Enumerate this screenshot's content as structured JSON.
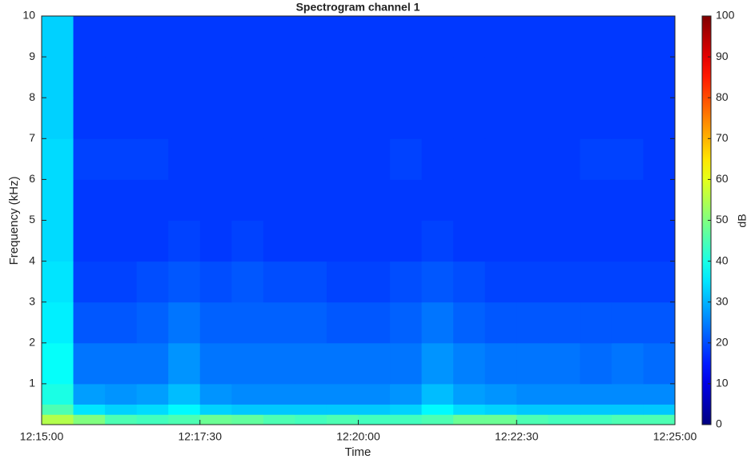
{
  "chart_data": {
    "type": "heatmap",
    "title": "Spectrogram channel 1",
    "xlabel": "Time",
    "ylabel": "Frequency (kHz)",
    "colorbar_label": "dB",
    "colormap": "jet",
    "x_edges": [
      44100,
      44130,
      44160,
      44190,
      44220,
      44250,
      44280,
      44310,
      44340,
      44370,
      44400,
      44430,
      44460,
      44490,
      44520,
      44550,
      44580,
      44610,
      44640,
      44670,
      44700
    ],
    "y_edges": [
      0,
      0.25,
      0.5,
      1,
      2,
      3,
      4,
      5,
      6,
      7,
      8,
      9,
      10
    ],
    "z": [
      [
        55,
        50,
        45,
        44,
        45,
        48,
        47,
        45,
        44,
        45,
        44,
        44,
        45,
        48,
        48,
        45,
        44,
        44,
        45,
        45
      ],
      [
        45,
        35,
        33,
        34,
        37,
        33,
        32,
        32,
        32,
        32,
        32,
        33,
        37,
        34,
        33,
        32,
        32,
        32,
        32,
        32
      ],
      [
        40,
        28,
        27,
        28,
        31,
        27,
        26,
        26,
        26,
        26,
        26,
        27,
        31,
        28,
        27,
        26,
        26,
        26,
        26,
        26
      ],
      [
        38,
        24,
        24,
        24,
        27,
        24,
        24,
        24,
        24,
        24,
        24,
        24,
        27,
        25,
        24,
        24,
        24,
        23,
        24,
        23
      ],
      [
        36,
        21,
        21,
        22,
        24,
        22,
        22,
        22,
        22,
        21,
        21,
        22,
        24,
        22,
        21,
        21,
        21,
        21,
        21,
        21
      ],
      [
        35,
        19,
        19,
        20,
        21,
        20,
        21,
        20,
        20,
        19,
        19,
        20,
        21,
        20,
        19,
        19,
        19,
        19,
        19,
        19
      ],
      [
        34,
        18,
        18,
        18,
        19,
        18,
        19,
        18,
        18,
        18,
        18,
        18,
        19,
        18,
        18,
        18,
        18,
        18,
        18,
        18
      ],
      [
        34,
        18,
        18,
        18,
        18,
        18,
        18,
        18,
        18,
        18,
        18,
        18,
        18,
        18,
        18,
        18,
        18,
        18,
        18,
        18
      ],
      [
        34,
        19,
        19,
        19,
        18,
        18,
        18,
        18,
        18,
        18,
        18,
        19,
        18,
        18,
        18,
        18,
        18,
        19,
        19,
        18
      ],
      [
        33,
        18,
        18,
        18,
        18,
        18,
        18,
        18,
        18,
        18,
        18,
        18,
        18,
        18,
        18,
        18,
        18,
        18,
        18,
        18
      ],
      [
        33,
        18,
        18,
        18,
        18,
        18,
        18,
        18,
        18,
        18,
        18,
        18,
        18,
        18,
        18,
        18,
        18,
        18,
        18,
        18
      ],
      [
        33,
        18,
        18,
        18,
        18,
        18,
        18,
        18,
        18,
        18,
        18,
        18,
        18,
        18,
        18,
        18,
        18,
        18,
        18,
        18
      ]
    ],
    "xlim": [
      44100,
      44700
    ],
    "xticks": [
      {
        "value": 44100,
        "label": "12:15:00"
      },
      {
        "value": 44250,
        "label": "12:17:30"
      },
      {
        "value": 44400,
        "label": "12:20:00"
      },
      {
        "value": 44550,
        "label": "12:22:30"
      },
      {
        "value": 44700,
        "label": "12:25:00"
      }
    ],
    "ylim": [
      0,
      10
    ],
    "yticks": [
      1,
      2,
      3,
      4,
      5,
      6,
      7,
      8,
      9,
      10
    ],
    "clim": [
      0,
      100
    ],
    "cticks": [
      0,
      10,
      20,
      30,
      40,
      50,
      60,
      70,
      80,
      90,
      100
    ]
  }
}
